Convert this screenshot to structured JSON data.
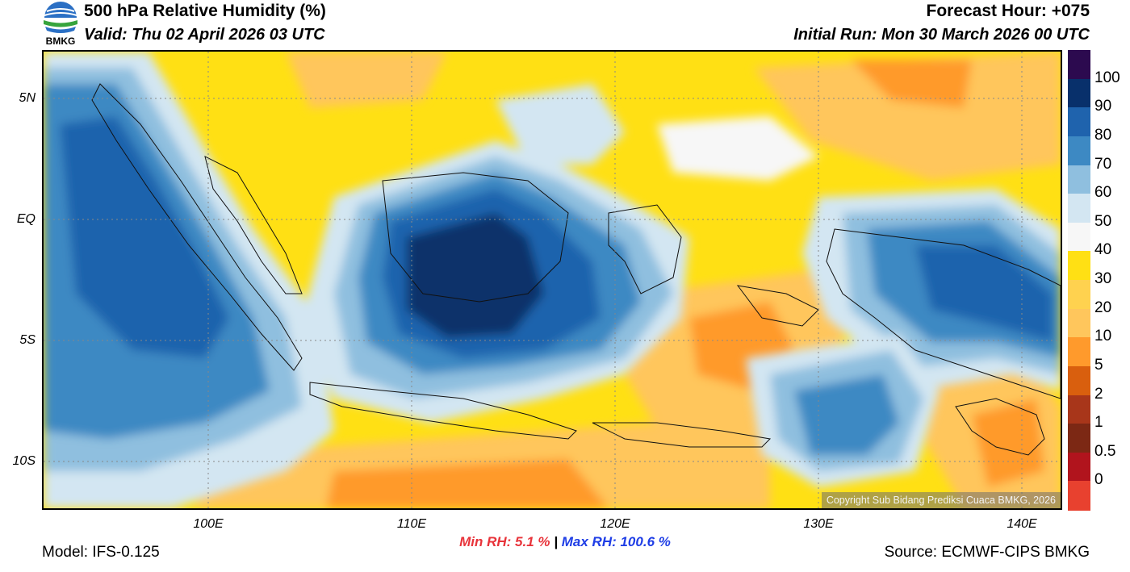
{
  "header": {
    "title": "500 hPa Relative Humidity (%)",
    "valid": "Valid: Thu 02 April 2026 03 UTC",
    "forecast_hour": "Forecast Hour: +075",
    "initial_run": "Initial Run: Mon 30 March 2026 00 UTC",
    "logo_text": "BMKG"
  },
  "map": {
    "lat_labels": [
      "5N",
      "EQ",
      "5S",
      "10S"
    ],
    "lon_labels": [
      "100E",
      "110E",
      "120E",
      "130E",
      "140E"
    ],
    "copyright": "Copyright Sub Bidang Prediksi Cuaca BMKG, 2026",
    "icons": [
      "bmkg-logo",
      "coastline-outlines",
      "gridlines"
    ]
  },
  "legend": {
    "labels": [
      "100",
      "90",
      "80",
      "70",
      "60",
      "50",
      "40",
      "30",
      "20",
      "10",
      "5",
      "2",
      "1",
      "0.5",
      "0"
    ],
    "colors": [
      "#2c0a4f",
      "#08306b",
      "#1f63ad",
      "#3d89c3",
      "#8fbfdf",
      "#d3e6f2",
      "#f7f7f7",
      "#ffe014",
      "#ffd24f",
      "#ffc65c",
      "#ff9a2c",
      "#d95f0e",
      "#a8361a",
      "#7c2814",
      "#b1141d",
      "#e8412f"
    ]
  },
  "stats": {
    "min_label": "Min RH:   5.1 %",
    "separator": "|",
    "max_label": "Max RH: 100.6 %"
  },
  "footer": {
    "model": "Model: IFS-0.125",
    "source": "Source: ECMWF-CIPS BMKG"
  }
}
